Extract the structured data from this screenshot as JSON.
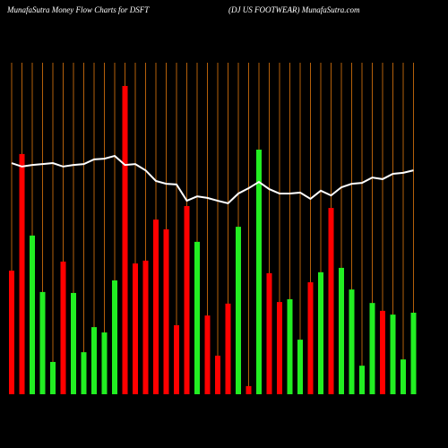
{
  "chart_data": {
    "type": "bar",
    "title": "MunafaSutra  Money Flow  Charts for DSFT",
    "subtitle": "(DJ US FOOTWEAR) MunafaSutra.com",
    "ylim": [
      0,
      100
    ],
    "grid_color": "#b5600a",
    "series": [
      {
        "type": "bar",
        "values": [
          39.4,
          76.6,
          50.6,
          32.6,
          10.3,
          42.3,
          32.3,
          13.4,
          21.4,
          19.7,
          36.3,
          98.3,
          41.7,
          42.6,
          55.7,
          52.6,
          22,
          60,
          48.6,
          25.1,
          12.3,
          28.9,
          53.4,
          2.6,
          78,
          38.6,
          29.4,
          30.3,
          17.4,
          35.7,
          38.9,
          59.4,
          40.3,
          33.4,
          9.1,
          29.1,
          26.6,
          25.4,
          11.1,
          26
        ],
        "colors": [
          "#ff0000",
          "#ff0000",
          "#22ee22",
          "#22ee22",
          "#22ee22",
          "#ff0000",
          "#22ee22",
          "#22ee22",
          "#22ee22",
          "#22ee22",
          "#22ee22",
          "#ff0000",
          "#ff0000",
          "#ff0000",
          "#ff0000",
          "#ff0000",
          "#ff0000",
          "#ff0000",
          "#22ee22",
          "#ff0000",
          "#ff0000",
          "#ff0000",
          "#22ee22",
          "#ff0000",
          "#22ee22",
          "#ff0000",
          "#ff0000",
          "#22ee22",
          "#22ee22",
          "#ff0000",
          "#22ee22",
          "#ff0000",
          "#22ee22",
          "#22ee22",
          "#22ee22",
          "#22ee22",
          "#ff0000",
          "#22ee22",
          "#22ee22",
          "#22ee22"
        ]
      },
      {
        "type": "line",
        "color": "#ffffff",
        "values": [
          73.7,
          72.6,
          73.1,
          73.4,
          73.7,
          72.6,
          73.1,
          73.4,
          74.9,
          75.1,
          76,
          73.1,
          73.4,
          71.4,
          68,
          67.1,
          66.9,
          61.7,
          63.1,
          62.6,
          61.7,
          60.9,
          64,
          65.7,
          67.7,
          65.4,
          64,
          64,
          64.3,
          62.3,
          64.9,
          63.4,
          66,
          67.1,
          67.4,
          69.1,
          68.6,
          70.3,
          70.6,
          71.4
        ]
      }
    ]
  }
}
